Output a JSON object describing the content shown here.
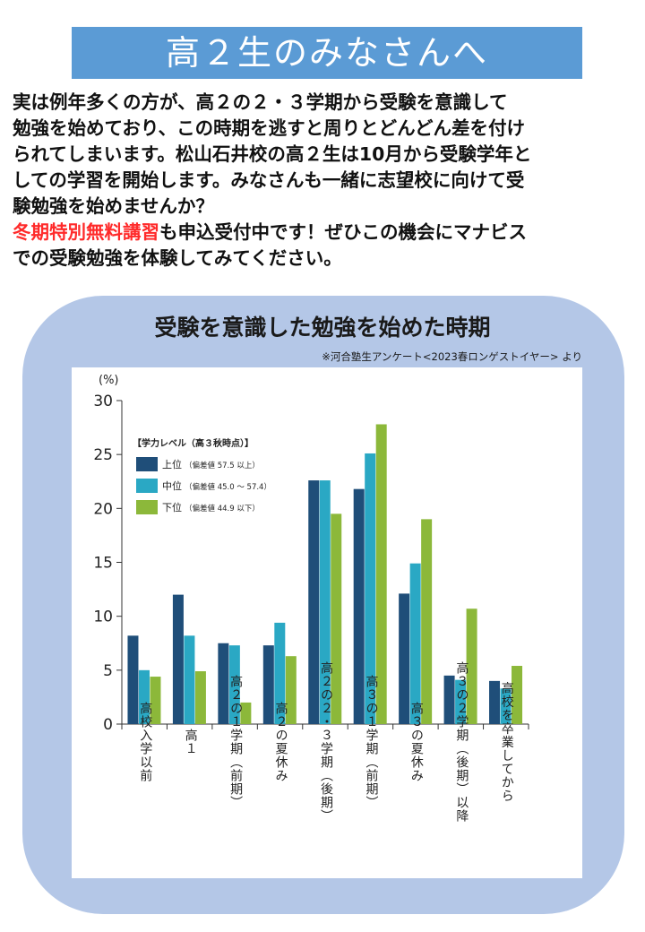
{
  "header": {
    "title": "高２生のみなさんへ"
  },
  "intro": {
    "line1": "実は例年多くの方が、高２の２・３学期から受験を意識して",
    "line2": "勉強を始めており、この時期を逃すと周りとどんどん差を付け",
    "line3": "られてしまいます。松山石井校の高２生は10月から受験学年と",
    "line4": "しての学習を開始します。みなさんも一緒に志望校に向けて受",
    "line5": "験勉強を始めませんか？",
    "highlight": "冬期特別無料講習",
    "line6_rest": "も申込受付中です！ぜひこの機会にマナビス",
    "line7": "での受験勉強を体験してみてください。"
  },
  "chart_data": {
    "type": "bar",
    "title": "受験を意識した勉強を始めた時期",
    "source": "※河合塾生アンケート<2023春ロンゲストイヤー> より",
    "ylabel": "(%)",
    "ylim": [
      0,
      30
    ],
    "yticks": [
      0,
      5,
      10,
      15,
      20,
      25,
      30
    ],
    "categories": [
      "高校入学以前",
      "高1",
      "高2の1学期(前期)",
      "高2の夏休み",
      "高2の2・3学期(後期)",
      "高3の1学期(前期)",
      "高3の夏休み",
      "高3の2学期(後期)以降",
      "高校を卒業してから"
    ],
    "category_labels_vertical": [
      "高校入学以前",
      "高１",
      "高２の１学期︵前期︶",
      "高２の夏休み",
      "高２の２・３学期︵後期︶",
      "高３の１学期︵前期︶",
      "高３の夏休み",
      "高３の２学期︵後期︶以降",
      "高校を卒業してから"
    ],
    "legend_title": "【学力レベル（高３秋時点）】",
    "legend_position": "top-left",
    "series": [
      {
        "name": "上位",
        "detail": "（偏差値 57.5 以上）",
        "color": "#1f4e79",
        "values": [
          8.2,
          12.0,
          7.5,
          7.3,
          22.6,
          21.8,
          12.1,
          4.5,
          4.0
        ]
      },
      {
        "name": "中位",
        "detail": "（偏差値 45.0 ～ 57.4）",
        "color": "#2aa8c4",
        "values": [
          5.0,
          8.2,
          7.3,
          9.4,
          22.6,
          25.1,
          14.9,
          4.1,
          3.3
        ]
      },
      {
        "name": "下位",
        "detail": "（偏差値 44.9 以下）",
        "color": "#8cb83a",
        "values": [
          4.4,
          4.9,
          2.0,
          6.3,
          19.5,
          27.8,
          19.0,
          10.7,
          5.4
        ]
      }
    ]
  }
}
